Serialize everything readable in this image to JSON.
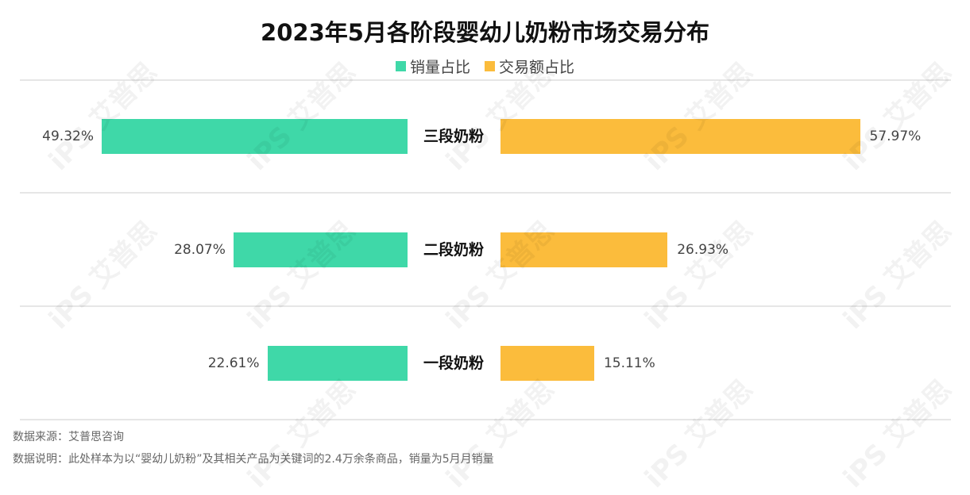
{
  "title": "2023年5月各阶段婴幼儿奶粉市场交易分布",
  "legend": [
    {
      "label": "销量占比",
      "color": "#3fd8a8"
    },
    {
      "label": "交易额占比",
      "color": "#fbbc3c"
    }
  ],
  "chart_data": {
    "type": "bar",
    "title": "2023年5月各阶段婴幼儿奶粉市场交易分布",
    "categories": [
      "三段奶粉",
      "二段奶粉",
      "一段奶粉"
    ],
    "series": [
      {
        "name": "销量占比",
        "values": [
          49.32,
          28.07,
          22.61
        ],
        "labels": [
          "49.32%",
          "28.07%",
          "22.61%"
        ],
        "color": "#3fd8a8"
      },
      {
        "name": "交易额占比",
        "values": [
          57.97,
          26.93,
          15.11
        ],
        "labels": [
          "57.97%",
          "26.93%",
          "15.11%"
        ],
        "color": "#fbbc3c"
      }
    ],
    "unit": "%",
    "orientation": "horizontal-butterfly",
    "xlim": [
      0,
      60
    ]
  },
  "watermark": "iPS 艾普思",
  "footnotes": {
    "source": "数据来源：艾普思咨询",
    "note": "数据说明：此处样本为以“婴幼儿奶粉”及其相关产品为关键词的2.4万余条商品，销量为5月月销量"
  }
}
